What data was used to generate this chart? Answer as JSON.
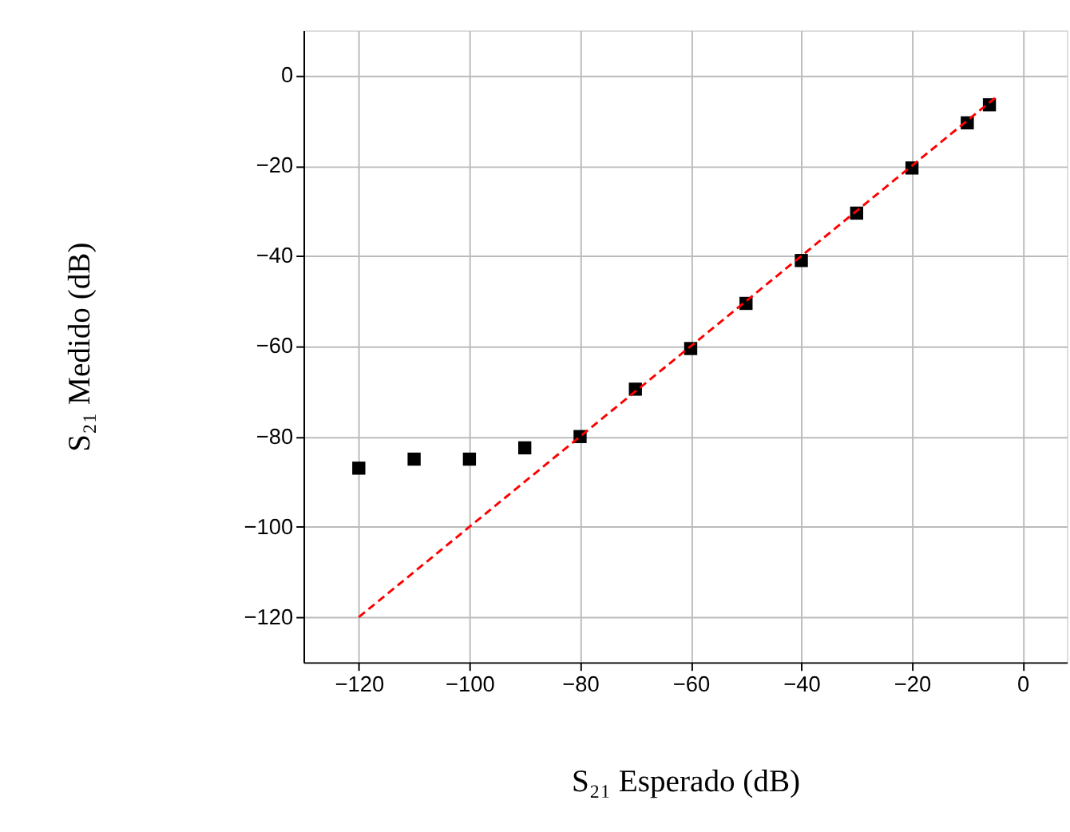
{
  "chart_data": {
    "type": "scatter",
    "xlabel": "S₂₁ Esperado (dB)",
    "ylabel": "S₂₁ Medido (dB)",
    "xlim": [
      -130,
      8
    ],
    "ylim": [
      -130,
      10
    ],
    "xticks": [
      -120,
      -100,
      -80,
      -60,
      -40,
      -20,
      0
    ],
    "yticks": [
      -120,
      -100,
      -80,
      -60,
      -40,
      -20,
      0
    ],
    "grid": true,
    "series": [
      {
        "color": "#000000",
        "marker": "square",
        "x": [
          -120,
          -110,
          -100,
          -90,
          -80,
          -70,
          -60,
          -50,
          -40,
          -30,
          -20,
          -10,
          -6
        ],
        "values": [
          -87,
          -85,
          -85,
          -82.5,
          -80,
          -69.5,
          -60.5,
          -50.5,
          -41,
          -30.5,
          -20.5,
          -10.5,
          -6.5
        ]
      },
      {
        "type": "line",
        "color": "#ff0000",
        "line_style": "dashed",
        "marker": "none",
        "x": [
          -120,
          -5
        ],
        "values": [
          -120,
          -5
        ]
      }
    ]
  }
}
